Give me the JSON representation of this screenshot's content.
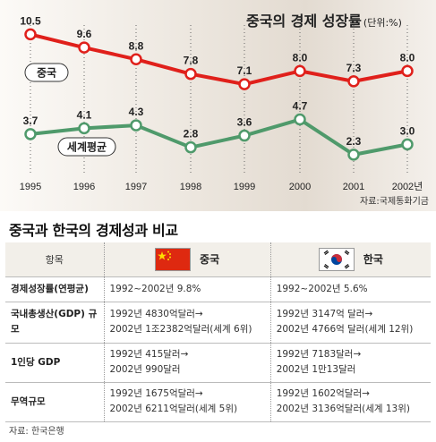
{
  "chart": {
    "title": "중국의 경제 성장률",
    "unit": "(단위:%)",
    "source": "자료:국제통화기금"
  },
  "chart_data": {
    "type": "line",
    "title": "중국의 경제 성장률",
    "x": [
      "1995",
      "1996",
      "1997",
      "1998",
      "1999",
      "2000",
      "2001",
      "2002년"
    ],
    "series": [
      {
        "name": "중국",
        "values": [
          10.5,
          9.6,
          8.8,
          7.8,
          7.1,
          8.0,
          7.3,
          8.0
        ],
        "color": "#e0201b",
        "labels": [
          "10.5",
          "9.6",
          "8.8",
          "7.8",
          "7.1",
          "8.0",
          "7.3",
          "8.0"
        ]
      },
      {
        "name": "세계평균",
        "values": [
          3.7,
          4.1,
          4.3,
          2.8,
          3.6,
          4.7,
          2.3,
          3.0
        ],
        "color": "#4f9a6b",
        "labels": [
          "3.7",
          "4.1",
          "4.3",
          "2.8",
          "3.6",
          "4.7",
          "2.3",
          "3.0"
        ]
      }
    ],
    "grid": "vertical-dotted",
    "legend": "inline-labels"
  },
  "table": {
    "title": "중국과 한국의 경제성과 비교",
    "header": {
      "item": "항목",
      "china": "중국",
      "korea": "한국"
    },
    "rows": [
      {
        "item": "경제성장률(연평균)",
        "china": [
          "1992~2002년 9.8%"
        ],
        "korea": [
          "1992~2002년 5.6%"
        ]
      },
      {
        "item": "국내총생산(GDP) 규모",
        "china": [
          "1992년 4830억달러→",
          "2002년 1조2382억달러(세계 6위)"
        ],
        "korea": [
          "1992년 3147억 달러→",
          "2002년 4766억 달러(세계 12위)"
        ]
      },
      {
        "item": "1인당 GDP",
        "china": [
          "1992년 415달러→",
          "2002년 990달러"
        ],
        "korea": [
          "1992년 7183달러→",
          "2002년 1만13달러"
        ]
      },
      {
        "item": "무역규모",
        "china": [
          "1992년 1675억달러→",
          "2002년 6211억달러(세계 5위)"
        ],
        "korea": [
          "1992년 1602억달러→",
          "2002년 3136억달러(세계 13위)"
        ]
      }
    ],
    "source": "자료: 한국은행"
  },
  "colors": {
    "china_red": "#e0201b",
    "world_green": "#4f9a6b",
    "header_bg": "#f2efe9"
  }
}
